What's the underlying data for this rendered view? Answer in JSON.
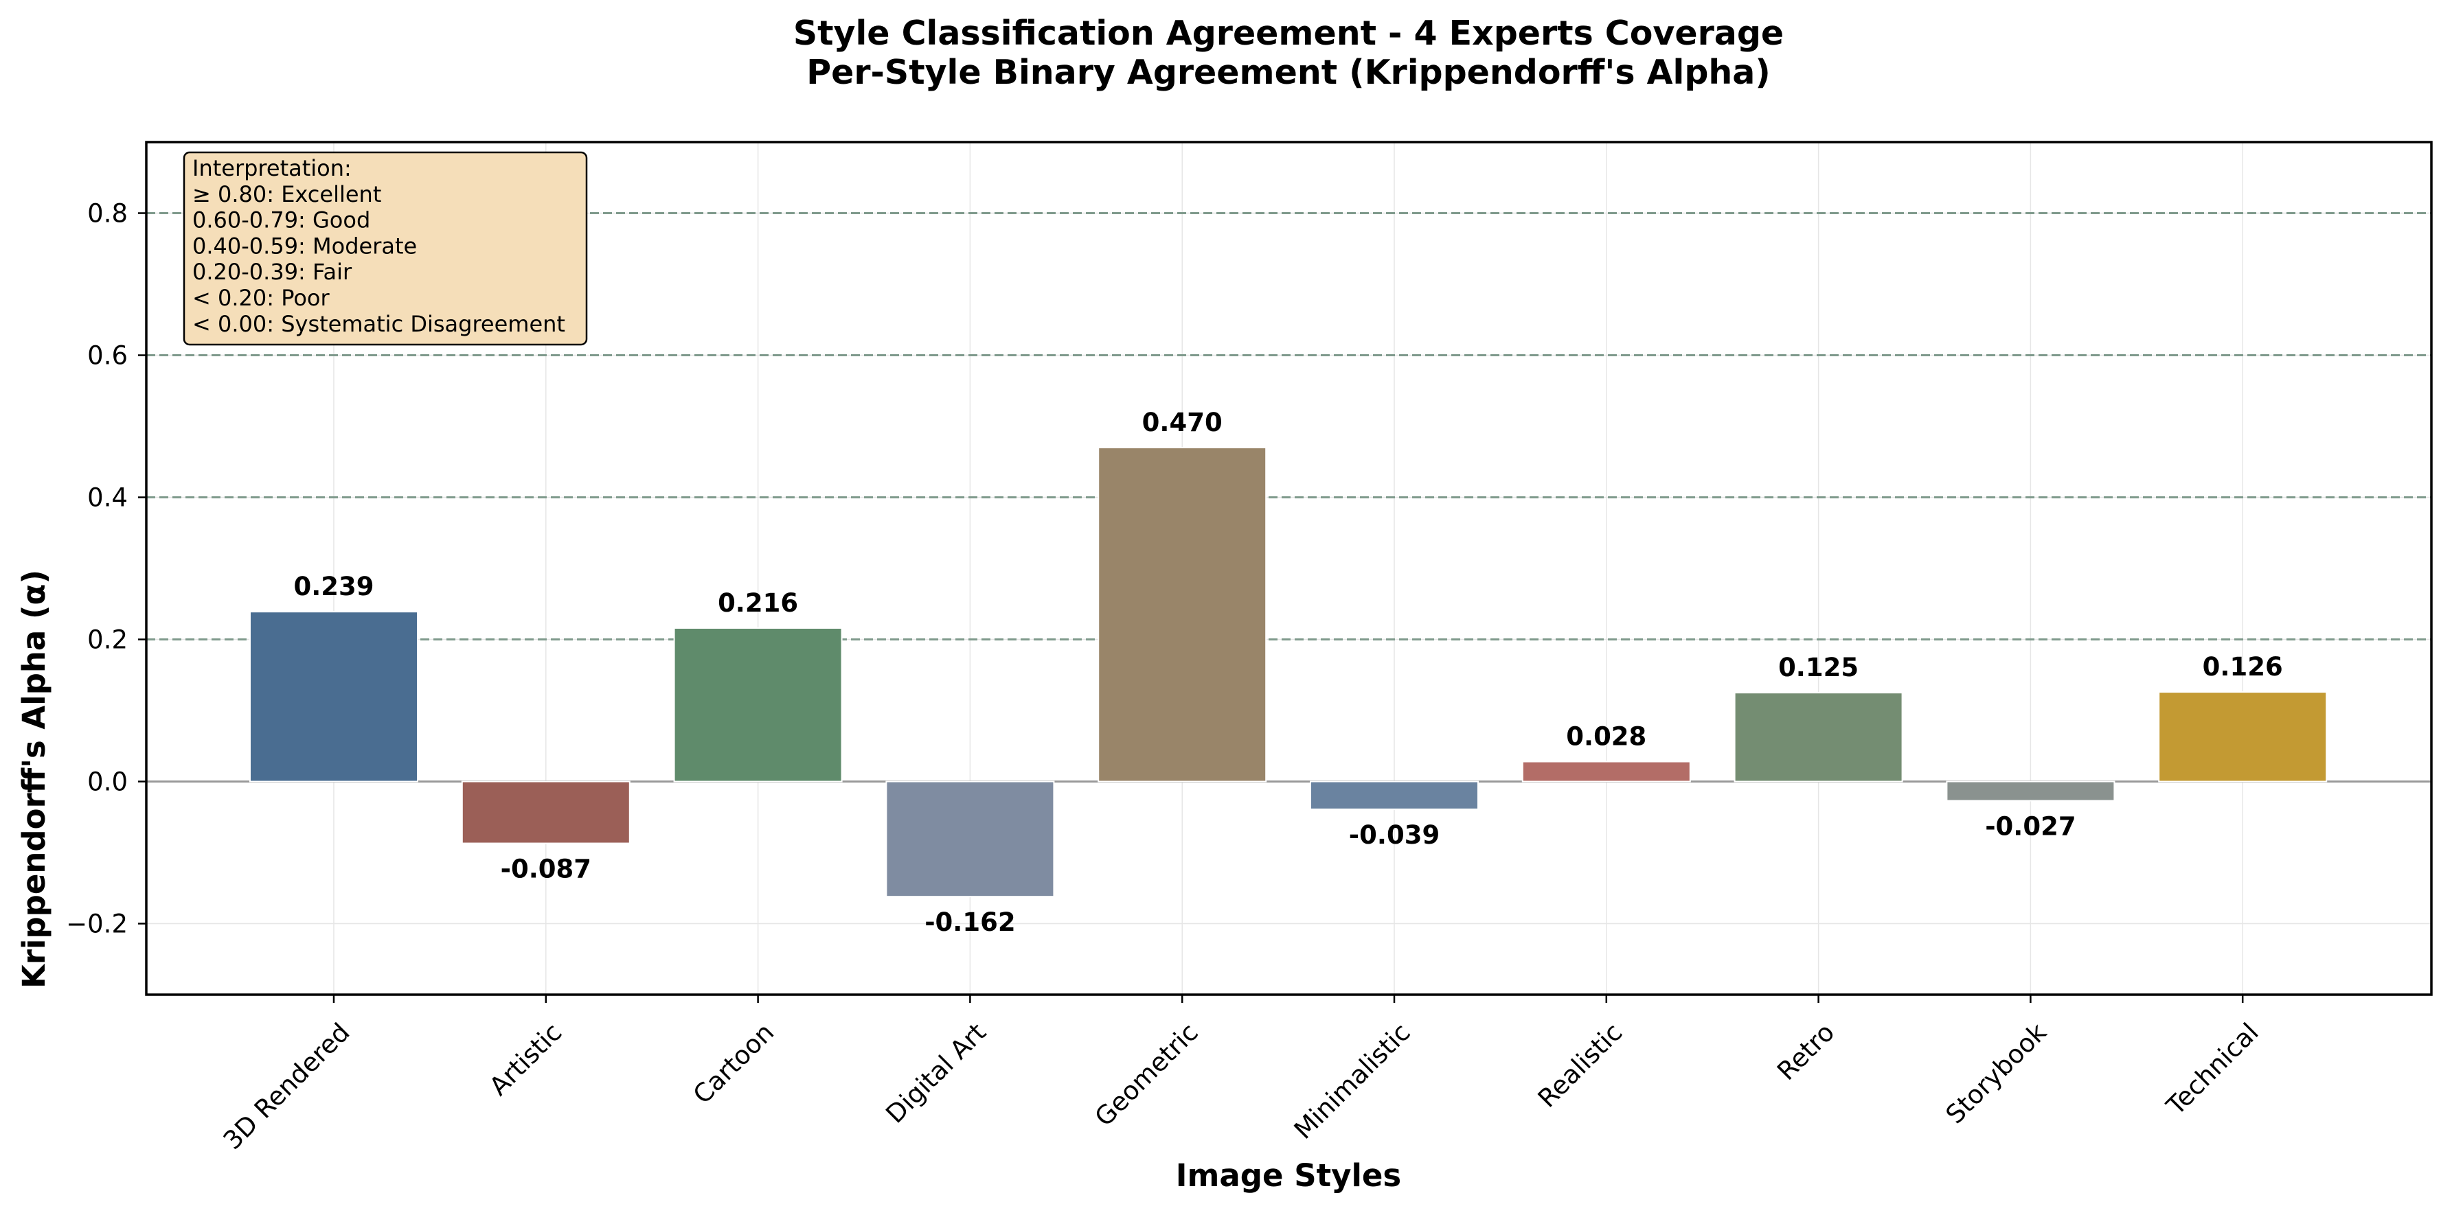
{
  "chart_data": {
    "type": "bar",
    "title": "Style Classification Agreement - 4 Experts Coverage",
    "subtitle": "Per-Style Binary Agreement (Krippendorff's Alpha)",
    "xlabel": "Image Styles",
    "ylabel": "Krippendorff's Alpha (α)",
    "ylim": [
      -0.3,
      0.9
    ],
    "yticks": [
      -0.2,
      0.0,
      0.2,
      0.4,
      0.6,
      0.8
    ],
    "ytick_labels": [
      "−0.2",
      "0.0",
      "0.2",
      "0.4",
      "0.6",
      "0.8"
    ],
    "categories": [
      "3D Rendered",
      "Artistic",
      "Cartoon",
      "Digital Art",
      "Geometric",
      "Minimalistic",
      "Realistic",
      "Retro",
      "Storybook",
      "Technical"
    ],
    "values": [
      0.239,
      -0.087,
      0.216,
      -0.162,
      0.47,
      -0.039,
      0.028,
      0.125,
      -0.027,
      0.126
    ],
    "value_labels": [
      "0.239",
      "-0.087",
      "0.216",
      "-0.162",
      "0.470",
      "-0.039",
      "0.028",
      "0.125",
      "-0.027",
      "0.126"
    ],
    "colors": [
      "#4a6d91",
      "#9b5f57",
      "#5f8b6b",
      "#7f8ca1",
      "#998569",
      "#6a83a0",
      "#b36d67",
      "#748d72",
      "#8a928f",
      "#c39a33"
    ],
    "reference_lines": [
      0.2,
      0.4,
      0.6,
      0.8
    ],
    "reference_line_color": "#7f9a8c",
    "grid": true,
    "legend_placement": "top-left",
    "legend_bg": "#f5deb9",
    "legend_lines": [
      "Interpretation:",
      "≥ 0.80: Excellent",
      "0.60-0.79: Good",
      "0.40-0.59: Moderate",
      "0.20-0.39: Fair",
      "< 0.20: Poor",
      "< 0.00: Systematic Disagreement"
    ]
  }
}
